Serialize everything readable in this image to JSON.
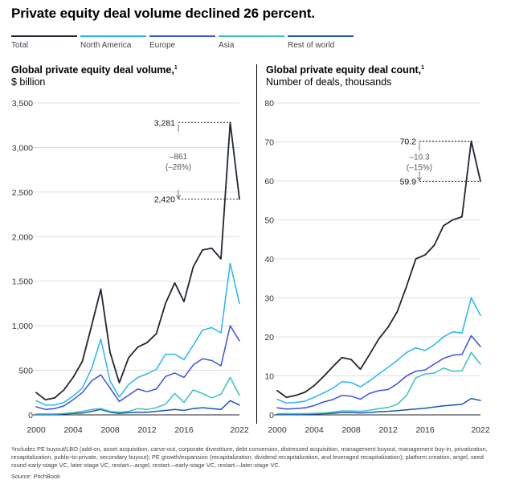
{
  "page": {
    "title": "Private equity deal volume declined 26 percent.",
    "footnote": "¹Includes PE buyout/LBO (add-on, asset acquisition, carve-out, corporate divestiture, debt conversion, distressed acquisition, management buyout, management buy-in, privatization, recapitalization, public-to-private, secondary buyout); PE growth/expansion (recapitalization, dividend recapitalization, and leveraged recapitalization); platform creation, angel, seed round early-stage VC, later-stage VC, restart—angel, restart—early-stage VC, restart—later-stage VC.",
    "source": "Source: PitchBook"
  },
  "legend": [
    {
      "name": "Total",
      "color": "#1f2631"
    },
    {
      "name": "North America",
      "color": "#27b4f5"
    },
    {
      "name": "Europe",
      "color": "#3a52e0"
    },
    {
      "name": "Asia",
      "color": "#37c3bd"
    },
    {
      "name": "Rest of world",
      "color": "#1a56b8"
    }
  ],
  "chart_data": [
    {
      "type": "line",
      "title": "Global private equity deal volume,",
      "title_superscript": "1",
      "ylabel": "$ billion",
      "x": [
        2000,
        2001,
        2002,
        2003,
        2004,
        2005,
        2006,
        2007,
        2008,
        2009,
        2010,
        2011,
        2012,
        2013,
        2014,
        2015,
        2016,
        2017,
        2018,
        2019,
        2020,
        2021,
        2022
      ],
      "ylim": [
        0,
        3500
      ],
      "yticks": [
        0,
        500,
        1000,
        1500,
        2000,
        2500,
        3000,
        3500
      ],
      "ytick_labels": [
        "0",
        "500",
        "1,000",
        "1,500",
        "2,000",
        "2,500",
        "3,000",
        "3,500"
      ],
      "xticks": [
        2000,
        2004,
        2008,
        2012,
        2016,
        2022
      ],
      "grid": "horizontal",
      "series": [
        {
          "name": "Total",
          "color": "#1f2631",
          "values": [
            250,
            170,
            190,
            280,
            420,
            600,
            1000,
            1410,
            700,
            360,
            640,
            760,
            810,
            910,
            1250,
            1480,
            1270,
            1660,
            1850,
            1870,
            1750,
            3281,
            2420
          ]
        },
        {
          "name": "North America",
          "color": "#27b4f5",
          "values": [
            160,
            110,
            110,
            140,
            210,
            300,
            520,
            850,
            380,
            200,
            340,
            420,
            460,
            510,
            680,
            680,
            620,
            780,
            950,
            980,
            920,
            1700,
            1250
          ]
        },
        {
          "name": "Europe",
          "color": "#3a52e0",
          "values": [
            90,
            60,
            70,
            100,
            170,
            250,
            380,
            450,
            300,
            150,
            220,
            290,
            260,
            290,
            430,
            470,
            420,
            560,
            630,
            610,
            550,
            1000,
            830
          ]
        },
        {
          "name": "Asia",
          "color": "#37c3bd",
          "values": [
            10,
            10,
            10,
            15,
            25,
            40,
            60,
            70,
            40,
            30,
            40,
            70,
            60,
            80,
            120,
            240,
            140,
            280,
            240,
            190,
            230,
            420,
            220
          ]
        },
        {
          "name": "Rest of world",
          "color": "#1a56b8",
          "values": [
            5,
            5,
            5,
            10,
            15,
            20,
            40,
            60,
            30,
            15,
            25,
            30,
            30,
            40,
            50,
            60,
            50,
            70,
            80,
            70,
            60,
            160,
            110
          ]
        }
      ],
      "annotations": {
        "start_label": "3,281",
        "end_label": "2,420",
        "change_label": "–861",
        "change_pct": "(–26%)",
        "start_value": 3281,
        "end_value": 2420
      }
    },
    {
      "type": "line",
      "title": "Global private equity deal count,",
      "title_superscript": "1",
      "ylabel": "Number of deals, thousands",
      "x": [
        2000,
        2001,
        2002,
        2003,
        2004,
        2005,
        2006,
        2007,
        2008,
        2009,
        2010,
        2011,
        2012,
        2013,
        2014,
        2015,
        2016,
        2017,
        2018,
        2019,
        2020,
        2021,
        2022
      ],
      "ylim": [
        0,
        80
      ],
      "yticks": [
        0,
        10,
        20,
        30,
        40,
        50,
        60,
        70,
        80
      ],
      "ytick_labels": [
        "0",
        "10",
        "20",
        "30",
        "40",
        "50",
        "60",
        "70",
        "80"
      ],
      "xticks": [
        2000,
        2004,
        2008,
        2012,
        2016,
        2022
      ],
      "grid": "horizontal",
      "series": [
        {
          "name": "Total",
          "color": "#1f2631",
          "values": [
            6.2,
            4.5,
            5.0,
            5.8,
            7.5,
            9.8,
            12.3,
            14.7,
            14.2,
            11.7,
            15.5,
            19.5,
            22.5,
            26.5,
            33.0,
            40.0,
            41.0,
            43.5,
            48.5,
            50.0,
            50.8,
            70.2,
            59.9
          ]
        },
        {
          "name": "North America",
          "color": "#27b4f5",
          "values": [
            4.0,
            3.0,
            3.2,
            3.5,
            4.5,
            5.6,
            6.8,
            8.5,
            8.3,
            7.2,
            8.7,
            10.5,
            12.2,
            14.0,
            16.0,
            17.2,
            16.5,
            18.0,
            20.0,
            21.3,
            21.0,
            30.0,
            25.5
          ]
        },
        {
          "name": "Europe",
          "color": "#3a52e0",
          "values": [
            1.8,
            1.5,
            1.6,
            1.8,
            2.4,
            3.3,
            3.9,
            5.0,
            4.8,
            4.0,
            5.5,
            6.2,
            6.5,
            8.0,
            10.0,
            11.2,
            11.5,
            13.0,
            14.5,
            15.3,
            15.5,
            20.3,
            17.5
          ]
        },
        {
          "name": "Asia",
          "color": "#37c3bd",
          "values": [
            0.3,
            0.3,
            0.3,
            0.3,
            0.4,
            0.5,
            0.7,
            1.0,
            1.0,
            0.9,
            1.2,
            1.6,
            1.9,
            2.7,
            5.0,
            9.5,
            10.5,
            10.7,
            12.0,
            11.2,
            11.3,
            16.0,
            13.0
          ]
        },
        {
          "name": "Rest of world",
          "color": "#1a56b8",
          "values": [
            0.1,
            0.1,
            0.1,
            0.2,
            0.2,
            0.3,
            0.4,
            0.6,
            0.6,
            0.5,
            0.6,
            0.8,
            0.9,
            1.1,
            1.3,
            1.5,
            1.7,
            2.0,
            2.3,
            2.5,
            2.7,
            4.2,
            3.7
          ]
        }
      ],
      "annotations": {
        "start_label": "70.2",
        "end_label": "59.9",
        "change_label": "–10.3",
        "change_pct": "(–15%)",
        "start_value": 70.2,
        "end_value": 59.9
      }
    }
  ]
}
